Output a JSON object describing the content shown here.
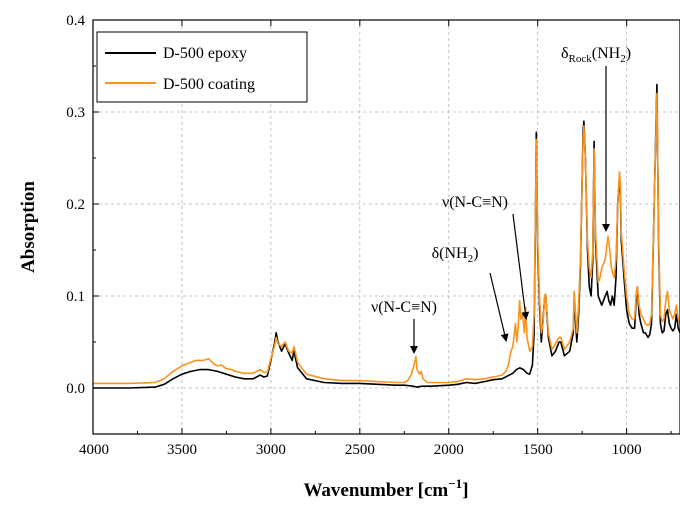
{
  "chart_data": {
    "type": "line",
    "xlabel": "Wavenumber [cm⁻¹]",
    "ylabel": "Absorption",
    "xlim": [
      4000,
      700
    ],
    "ylim": [
      -0.05,
      0.4
    ],
    "x_reversed": true,
    "grid": true,
    "legend_position": "top-left",
    "x_ticks": [
      4000,
      3500,
      3000,
      2500,
      2000,
      1500,
      1000
    ],
    "x_tick_labels": [
      "4000",
      "3500",
      "3000",
      "2500",
      "2000",
      "1500",
      "1000"
    ],
    "y_ticks": [
      0.0,
      0.1,
      0.2,
      0.3,
      0.4
    ],
    "y_tick_labels": [
      "0.0",
      "0.1",
      "0.2",
      "0.3",
      "0.4"
    ],
    "series": [
      {
        "name": "D-500 epoxy",
        "color": "#000000",
        "points": [
          [
            4000,
            0.0
          ],
          [
            3800,
            0.0
          ],
          [
            3650,
            0.001
          ],
          [
            3600,
            0.004
          ],
          [
            3550,
            0.01
          ],
          [
            3500,
            0.015
          ],
          [
            3450,
            0.018
          ],
          [
            3400,
            0.02
          ],
          [
            3350,
            0.02
          ],
          [
            3300,
            0.018
          ],
          [
            3250,
            0.015
          ],
          [
            3200,
            0.012
          ],
          [
            3150,
            0.01
          ],
          [
            3100,
            0.01
          ],
          [
            3080,
            0.012
          ],
          [
            3060,
            0.014
          ],
          [
            3040,
            0.012
          ],
          [
            3020,
            0.013
          ],
          [
            3000,
            0.03
          ],
          [
            2980,
            0.048
          ],
          [
            2970,
            0.06
          ],
          [
            2960,
            0.05
          ],
          [
            2940,
            0.04
          ],
          [
            2920,
            0.048
          ],
          [
            2900,
            0.038
          ],
          [
            2880,
            0.03
          ],
          [
            2870,
            0.04
          ],
          [
            2850,
            0.022
          ],
          [
            2800,
            0.01
          ],
          [
            2700,
            0.006
          ],
          [
            2600,
            0.005
          ],
          [
            2500,
            0.005
          ],
          [
            2400,
            0.004
          ],
          [
            2300,
            0.003
          ],
          [
            2250,
            0.003
          ],
          [
            2200,
            0.002
          ],
          [
            2180,
            0.001
          ],
          [
            2150,
            0.002
          ],
          [
            2100,
            0.002
          ],
          [
            2000,
            0.003
          ],
          [
            1950,
            0.004
          ],
          [
            1900,
            0.006
          ],
          [
            1850,
            0.005
          ],
          [
            1800,
            0.007
          ],
          [
            1750,
            0.009
          ],
          [
            1700,
            0.01
          ],
          [
            1660,
            0.014
          ],
          [
            1640,
            0.016
          ],
          [
            1620,
            0.02
          ],
          [
            1600,
            0.022
          ],
          [
            1580,
            0.02
          ],
          [
            1560,
            0.016
          ],
          [
            1545,
            0.015
          ],
          [
            1530,
            0.025
          ],
          [
            1520,
            0.06
          ],
          [
            1512,
            0.2
          ],
          [
            1508,
            0.278
          ],
          [
            1500,
            0.15
          ],
          [
            1490,
            0.09
          ],
          [
            1480,
            0.05
          ],
          [
            1460,
            0.1
          ],
          [
            1455,
            0.102
          ],
          [
            1440,
            0.055
          ],
          [
            1420,
            0.035
          ],
          [
            1400,
            0.04
          ],
          [
            1380,
            0.05
          ],
          [
            1370,
            0.05
          ],
          [
            1350,
            0.035
          ],
          [
            1320,
            0.04
          ],
          [
            1300,
            0.06
          ],
          [
            1295,
            0.098
          ],
          [
            1280,
            0.05
          ],
          [
            1270,
            0.08
          ],
          [
            1260,
            0.13
          ],
          [
            1245,
            0.28
          ],
          [
            1240,
            0.29
          ],
          [
            1232,
            0.25
          ],
          [
            1220,
            0.15
          ],
          [
            1210,
            0.11
          ],
          [
            1200,
            0.1
          ],
          [
            1190,
            0.14
          ],
          [
            1183,
            0.268
          ],
          [
            1175,
            0.16
          ],
          [
            1160,
            0.1
          ],
          [
            1140,
            0.09
          ],
          [
            1120,
            0.1
          ],
          [
            1110,
            0.105
          ],
          [
            1100,
            0.095
          ],
          [
            1090,
            0.09
          ],
          [
            1080,
            0.1
          ],
          [
            1070,
            0.09
          ],
          [
            1060,
            0.12
          ],
          [
            1050,
            0.2
          ],
          [
            1040,
            0.23
          ],
          [
            1035,
            0.21
          ],
          [
            1030,
            0.16
          ],
          [
            1015,
            0.12
          ],
          [
            1000,
            0.085
          ],
          [
            985,
            0.07
          ],
          [
            970,
            0.065
          ],
          [
            955,
            0.065
          ],
          [
            945,
            0.1
          ],
          [
            940,
            0.11
          ],
          [
            930,
            0.08
          ],
          [
            920,
            0.07
          ],
          [
            905,
            0.06
          ],
          [
            895,
            0.06
          ],
          [
            880,
            0.055
          ],
          [
            870,
            0.058
          ],
          [
            860,
            0.07
          ],
          [
            845,
            0.2
          ],
          [
            830,
            0.33
          ],
          [
            820,
            0.15
          ],
          [
            810,
            0.07
          ],
          [
            800,
            0.06
          ],
          [
            790,
            0.062
          ],
          [
            780,
            0.08
          ],
          [
            770,
            0.085
          ],
          [
            760,
            0.07
          ],
          [
            750,
            0.065
          ],
          [
            740,
            0.062
          ],
          [
            730,
            0.065
          ],
          [
            720,
            0.08
          ],
          [
            710,
            0.065
          ],
          [
            700,
            0.06
          ]
        ]
      },
      {
        "name": "D-500 coating",
        "color": "#f7931e",
        "points": [
          [
            4000,
            0.005
          ],
          [
            3800,
            0.005
          ],
          [
            3650,
            0.006
          ],
          [
            3600,
            0.01
          ],
          [
            3550,
            0.018
          ],
          [
            3500,
            0.024
          ],
          [
            3450,
            0.028
          ],
          [
            3420,
            0.03
          ],
          [
            3400,
            0.03
          ],
          [
            3380,
            0.03
          ],
          [
            3350,
            0.032
          ],
          [
            3320,
            0.026
          ],
          [
            3300,
            0.024
          ],
          [
            3280,
            0.025
          ],
          [
            3250,
            0.021
          ],
          [
            3220,
            0.02
          ],
          [
            3200,
            0.018
          ],
          [
            3150,
            0.016
          ],
          [
            3100,
            0.016
          ],
          [
            3080,
            0.018
          ],
          [
            3060,
            0.02
          ],
          [
            3040,
            0.017
          ],
          [
            3020,
            0.017
          ],
          [
            3000,
            0.032
          ],
          [
            2980,
            0.045
          ],
          [
            2970,
            0.055
          ],
          [
            2960,
            0.048
          ],
          [
            2940,
            0.045
          ],
          [
            2920,
            0.05
          ],
          [
            2900,
            0.04
          ],
          [
            2880,
            0.038
          ],
          [
            2870,
            0.045
          ],
          [
            2850,
            0.028
          ],
          [
            2800,
            0.015
          ],
          [
            2700,
            0.01
          ],
          [
            2600,
            0.008
          ],
          [
            2500,
            0.008
          ],
          [
            2400,
            0.007
          ],
          [
            2300,
            0.006
          ],
          [
            2250,
            0.006
          ],
          [
            2230,
            0.008
          ],
          [
            2210,
            0.015
          ],
          [
            2195,
            0.025
          ],
          [
            2185,
            0.034
          ],
          [
            2178,
            0.02
          ],
          [
            2165,
            0.015
          ],
          [
            2155,
            0.018
          ],
          [
            2145,
            0.01
          ],
          [
            2120,
            0.006
          ],
          [
            2050,
            0.006
          ],
          [
            2000,
            0.006
          ],
          [
            1950,
            0.007
          ],
          [
            1900,
            0.01
          ],
          [
            1850,
            0.009
          ],
          [
            1800,
            0.01
          ],
          [
            1750,
            0.012
          ],
          [
            1700,
            0.014
          ],
          [
            1680,
            0.018
          ],
          [
            1665,
            0.025
          ],
          [
            1650,
            0.04
          ],
          [
            1640,
            0.045
          ],
          [
            1625,
            0.07
          ],
          [
            1618,
            0.05
          ],
          [
            1610,
            0.065
          ],
          [
            1602,
            0.095
          ],
          [
            1595,
            0.075
          ],
          [
            1585,
            0.08
          ],
          [
            1575,
            0.06
          ],
          [
            1568,
            0.088
          ],
          [
            1560,
            0.055
          ],
          [
            1545,
            0.04
          ],
          [
            1530,
            0.045
          ],
          [
            1520,
            0.08
          ],
          [
            1512,
            0.2
          ],
          [
            1508,
            0.27
          ],
          [
            1500,
            0.16
          ],
          [
            1490,
            0.1
          ],
          [
            1480,
            0.06
          ],
          [
            1470,
            0.07
          ],
          [
            1460,
            0.1
          ],
          [
            1455,
            0.102
          ],
          [
            1440,
            0.06
          ],
          [
            1420,
            0.042
          ],
          [
            1400,
            0.048
          ],
          [
            1380,
            0.055
          ],
          [
            1370,
            0.055
          ],
          [
            1350,
            0.042
          ],
          [
            1320,
            0.05
          ],
          [
            1300,
            0.065
          ],
          [
            1295,
            0.105
          ],
          [
            1280,
            0.06
          ],
          [
            1270,
            0.09
          ],
          [
            1260,
            0.14
          ],
          [
            1245,
            0.27
          ],
          [
            1240,
            0.285
          ],
          [
            1232,
            0.25
          ],
          [
            1220,
            0.16
          ],
          [
            1210,
            0.13
          ],
          [
            1200,
            0.12
          ],
          [
            1190,
            0.15
          ],
          [
            1183,
            0.26
          ],
          [
            1175,
            0.17
          ],
          [
            1160,
            0.115
          ],
          [
            1150,
            0.12
          ],
          [
            1140,
            0.13
          ],
          [
            1120,
            0.14
          ],
          [
            1105,
            0.165
          ],
          [
            1095,
            0.15
          ],
          [
            1085,
            0.13
          ],
          [
            1070,
            0.12
          ],
          [
            1060,
            0.14
          ],
          [
            1050,
            0.2
          ],
          [
            1040,
            0.235
          ],
          [
            1035,
            0.22
          ],
          [
            1030,
            0.17
          ],
          [
            1015,
            0.13
          ],
          [
            1000,
            0.1
          ],
          [
            985,
            0.08
          ],
          [
            970,
            0.075
          ],
          [
            955,
            0.075
          ],
          [
            945,
            0.105
          ],
          [
            940,
            0.11
          ],
          [
            930,
            0.09
          ],
          [
            920,
            0.08
          ],
          [
            905,
            0.075
          ],
          [
            895,
            0.07
          ],
          [
            880,
            0.068
          ],
          [
            870,
            0.07
          ],
          [
            860,
            0.08
          ],
          [
            845,
            0.2
          ],
          [
            830,
            0.32
          ],
          [
            820,
            0.16
          ],
          [
            810,
            0.08
          ],
          [
            800,
            0.072
          ],
          [
            790,
            0.075
          ],
          [
            780,
            0.095
          ],
          [
            770,
            0.105
          ],
          [
            760,
            0.085
          ],
          [
            750,
            0.08
          ],
          [
            740,
            0.075
          ],
          [
            730,
            0.08
          ],
          [
            720,
            0.09
          ],
          [
            710,
            0.075
          ],
          [
            700,
            0.07
          ]
        ]
      }
    ],
    "annotations": [
      {
        "id": "nu-ncn-2180",
        "label": "ν(N-C≡N)",
        "x": 2185,
        "y": 0.034
      },
      {
        "id": "delta-nh2",
        "label": "δ(NH₂)",
        "x": 1640,
        "y": 0.045
      },
      {
        "id": "nu-ncn-1570",
        "label": "ν(N-C≡N)",
        "x": 1568,
        "y": 0.07
      },
      {
        "id": "delta-rock-nh2",
        "label": "δRock(NH₂)",
        "x": 1105,
        "y": 0.165
      }
    ]
  }
}
